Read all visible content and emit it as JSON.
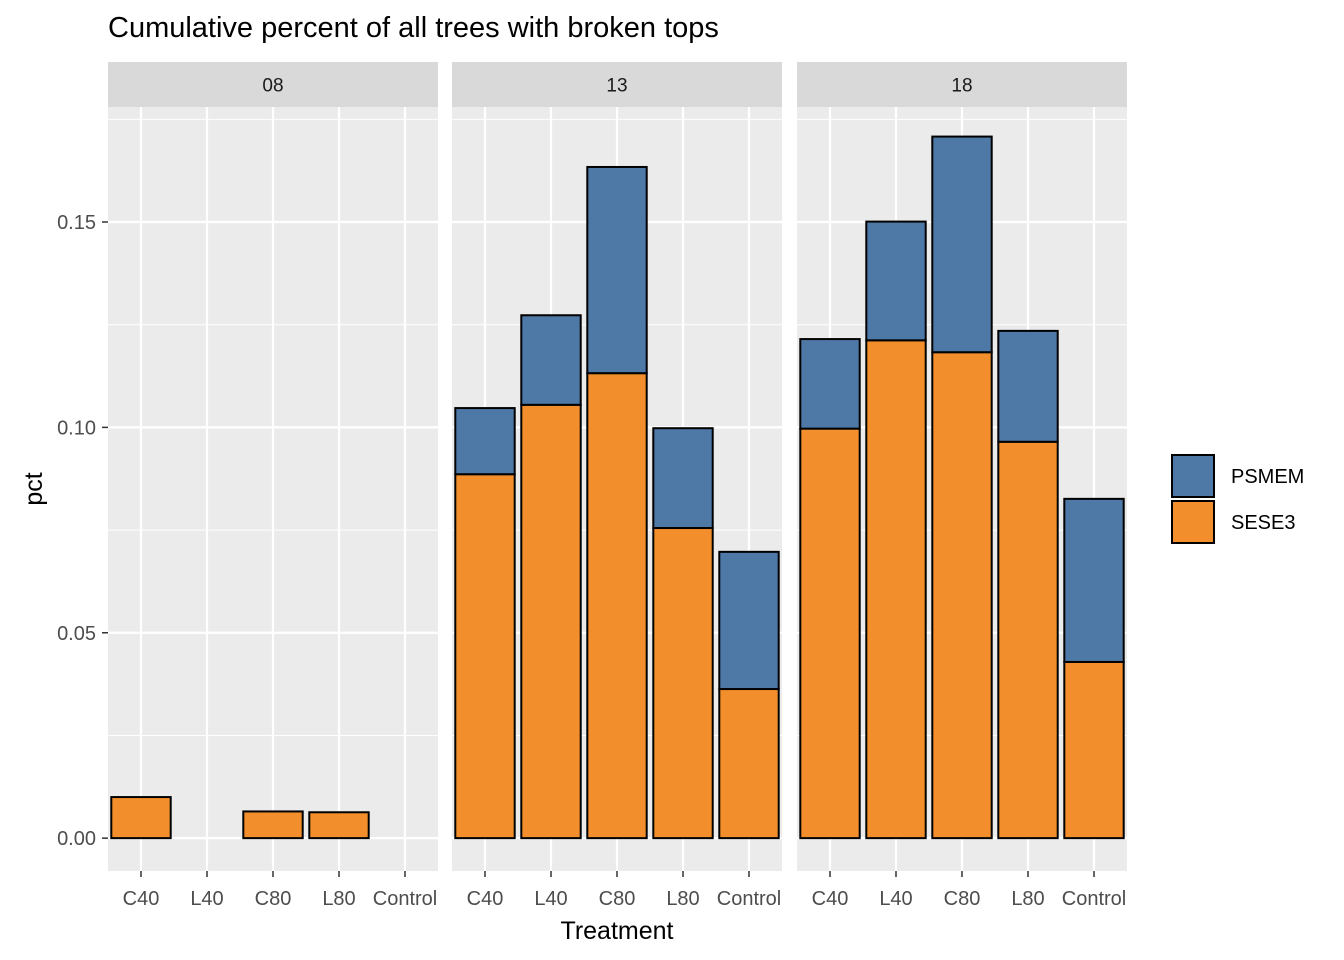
{
  "chart_data": {
    "type": "bar",
    "stacked": true,
    "title": "Cumulative percent of all trees with broken tops",
    "xlabel": "Treatment",
    "ylabel": "pct",
    "ylim": [
      -0.008,
      0.178
    ],
    "yticks": [
      0.0,
      0.05,
      0.1,
      0.15
    ],
    "ytick_labels": [
      "0.00",
      "0.05",
      "0.10",
      "0.15"
    ],
    "categories": [
      "C40",
      "L40",
      "C80",
      "L80",
      "Control"
    ],
    "legend": {
      "position": "right",
      "entries": [
        {
          "name": "PSMEM",
          "color": "#4e79a7"
        },
        {
          "name": "SESE3",
          "color": "#f28e2b"
        }
      ]
    },
    "grid": true,
    "panels": [
      {
        "label": "08",
        "series": [
          {
            "name": "SESE3",
            "values": [
              0.01,
              null,
              0.0065,
              0.0063,
              null
            ]
          },
          {
            "name": "PSMEM",
            "values": [
              null,
              null,
              null,
              null,
              null
            ]
          }
        ]
      },
      {
        "label": "13",
        "series": [
          {
            "name": "SESE3",
            "values": [
              0.0886,
              0.1055,
              0.1132,
              0.0755,
              0.0363
            ]
          },
          {
            "name": "PSMEM",
            "values": [
              0.0161,
              0.0218,
              0.0502,
              0.0243,
              0.0334
            ]
          }
        ]
      },
      {
        "label": "18",
        "series": [
          {
            "name": "SESE3",
            "values": [
              0.0997,
              0.1212,
              0.1183,
              0.0965,
              0.0429
            ]
          },
          {
            "name": "PSMEM",
            "values": [
              0.0218,
              0.0289,
              0.0525,
              0.027,
              0.0397
            ]
          }
        ]
      }
    ]
  }
}
